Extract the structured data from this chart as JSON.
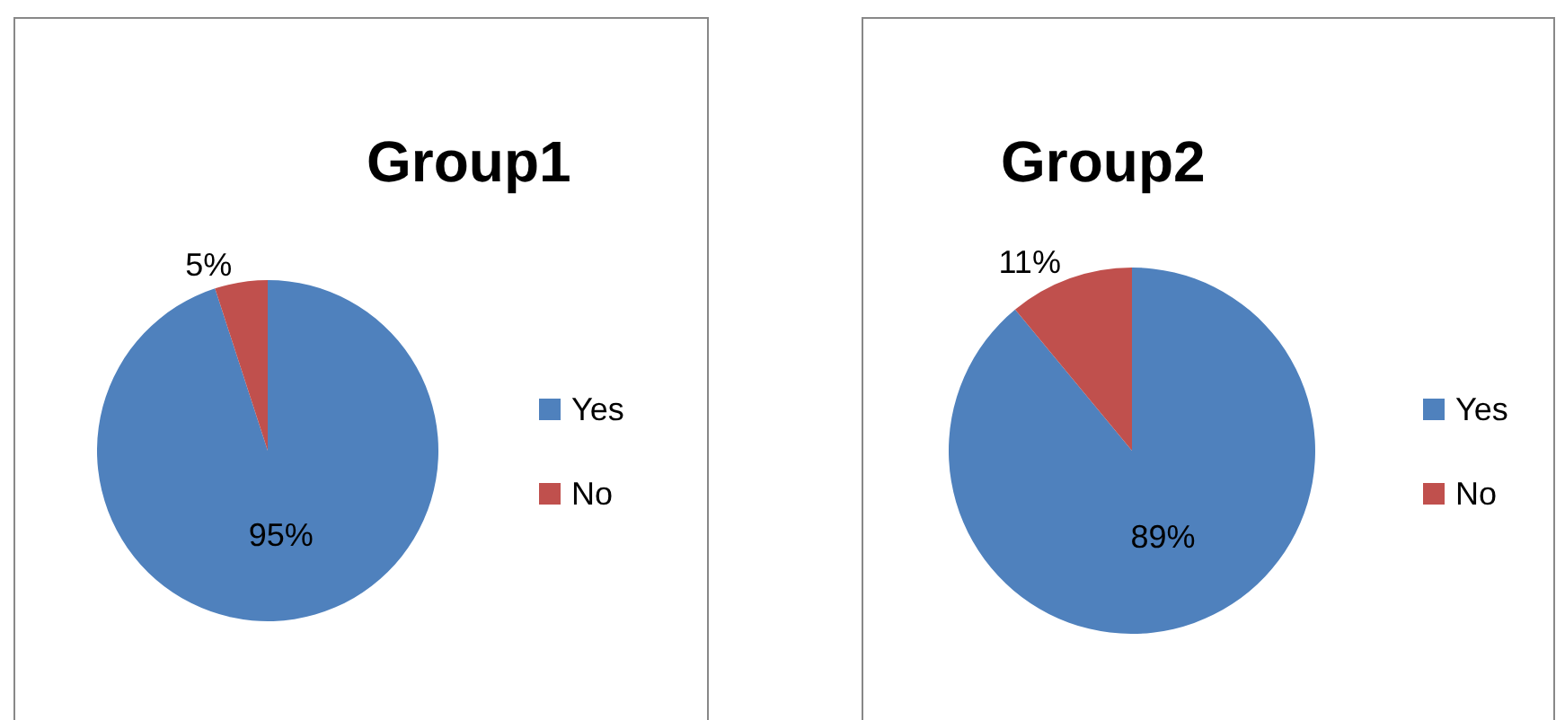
{
  "chart_data": [
    {
      "type": "pie",
      "title": "Group1",
      "categories": [
        "Yes",
        "No"
      ],
      "values": [
        95,
        5
      ],
      "colors": [
        "#4f81bd",
        "#c0504d"
      ],
      "value_labels": [
        "95%",
        "5%"
      ],
      "legend": "right"
    },
    {
      "type": "pie",
      "title": "Group2",
      "categories": [
        "Yes",
        "No"
      ],
      "values": [
        89,
        11
      ],
      "colors": [
        "#4f81bd",
        "#c0504d"
      ],
      "value_labels": [
        "89%",
        "11%"
      ],
      "legend": "right"
    }
  ]
}
